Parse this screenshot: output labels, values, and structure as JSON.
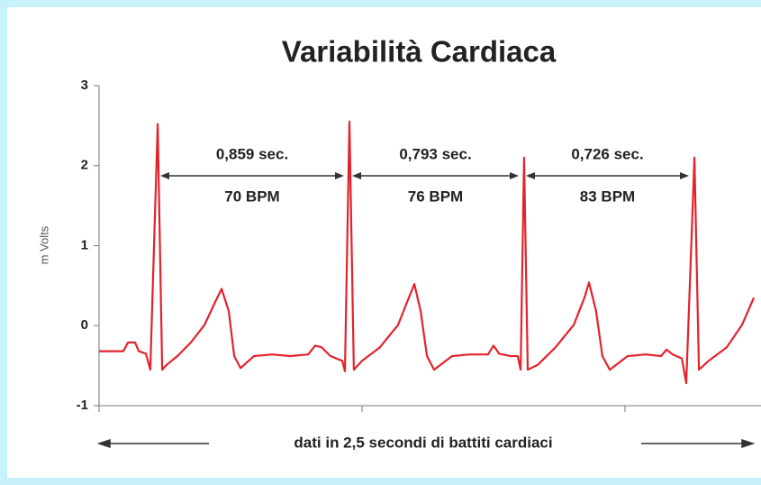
{
  "chart_data": {
    "type": "line",
    "title": "Variabilità Cardiaca",
    "ylabel": "m Volts",
    "xlabel": "dati in 2,5 secondi di battiti cardiaci",
    "color": "#e3232c",
    "xlim": [
      0,
      2.5
    ],
    "xticks": [
      0,
      1,
      2
    ],
    "ylim": [
      -1,
      3
    ],
    "yticks": [
      -1,
      0,
      1,
      2,
      3
    ],
    "x": [
      0,
      0.092,
      0.11,
      0.137,
      0.151,
      0.178,
      0.195,
      0.223,
      0.24,
      0.257,
      0.298,
      0.349,
      0.401,
      0.442,
      0.466,
      0.493,
      0.514,
      0.538,
      0.589,
      0.658,
      0.726,
      0.795,
      0.822,
      0.846,
      0.88,
      0.925,
      0.935,
      0.952,
      0.969,
      1.0,
      1.068,
      1.137,
      1.178,
      1.199,
      1.223,
      1.247,
      1.274,
      1.342,
      1.411,
      1.479,
      1.5,
      1.521,
      1.565,
      1.592,
      1.603,
      1.616,
      1.63,
      1.668,
      1.736,
      1.805,
      1.846,
      1.863,
      1.89,
      1.914,
      1.942,
      2.01,
      2.079,
      2.137,
      2.158,
      2.182,
      2.216,
      2.233,
      2.264,
      2.281,
      2.318,
      2.387,
      2.445,
      2.49
    ],
    "values": [
      -0.32,
      -0.32,
      -0.21,
      -0.21,
      -0.32,
      -0.35,
      -0.55,
      2.52,
      -0.55,
      -0.49,
      -0.38,
      -0.21,
      0.01,
      0.3,
      0.46,
      0.18,
      -0.38,
      -0.53,
      -0.38,
      -0.36,
      -0.38,
      -0.36,
      -0.25,
      -0.27,
      -0.38,
      -0.44,
      -0.57,
      2.55,
      -0.55,
      -0.44,
      -0.27,
      0.01,
      0.35,
      0.52,
      0.18,
      -0.38,
      -0.55,
      -0.38,
      -0.36,
      -0.36,
      -0.25,
      -0.35,
      -0.38,
      -0.38,
      -0.55,
      2.1,
      -0.55,
      -0.49,
      -0.27,
      0.01,
      0.35,
      0.54,
      0.18,
      -0.38,
      -0.55,
      -0.38,
      -0.36,
      -0.38,
      -0.3,
      -0.36,
      -0.41,
      -0.72,
      2.1,
      -0.55,
      -0.44,
      -0.27,
      0.01,
      0.35
    ],
    "annotations": [
      {
        "interval": "0,859 sec.",
        "rate": "70 BPM"
      },
      {
        "interval": "0,793 sec.",
        "rate": "76 BPM"
      },
      {
        "interval": "0,726 sec.",
        "rate": "83 BPM"
      }
    ]
  }
}
